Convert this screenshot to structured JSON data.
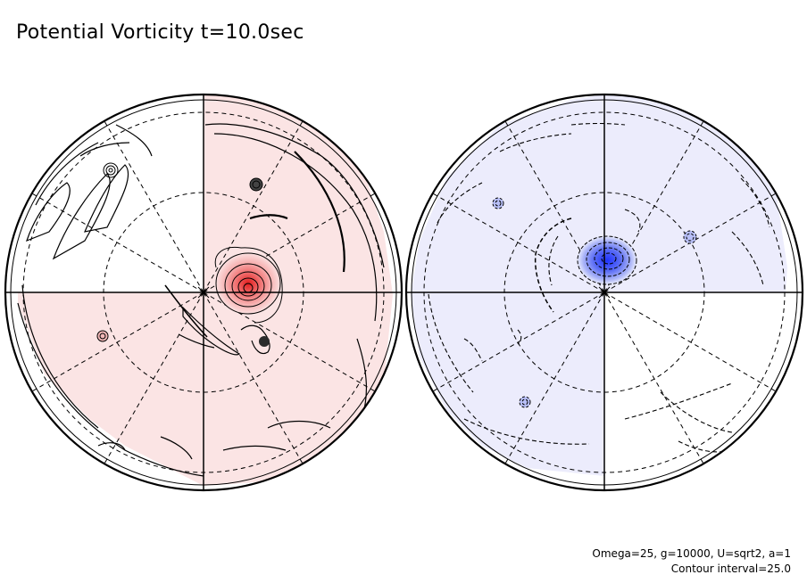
{
  "title": "Potential Vorticity t=10.0sec",
  "footer": {
    "params": "Omega=25, g=10000, U=sqrt2, a=1",
    "contour_interval": "Contour interval=25.0"
  },
  "colors": {
    "positive_fill": "#fbe4e4",
    "positive_core": "#ef4444",
    "negative_fill": "#ececfc",
    "negative_core": "#2b3df0",
    "line": "#000000"
  },
  "hemispheres": [
    {
      "name": "left-hemisphere",
      "vortex_sign": "positive"
    },
    {
      "name": "right-hemisphere",
      "vortex_sign": "negative"
    }
  ]
}
